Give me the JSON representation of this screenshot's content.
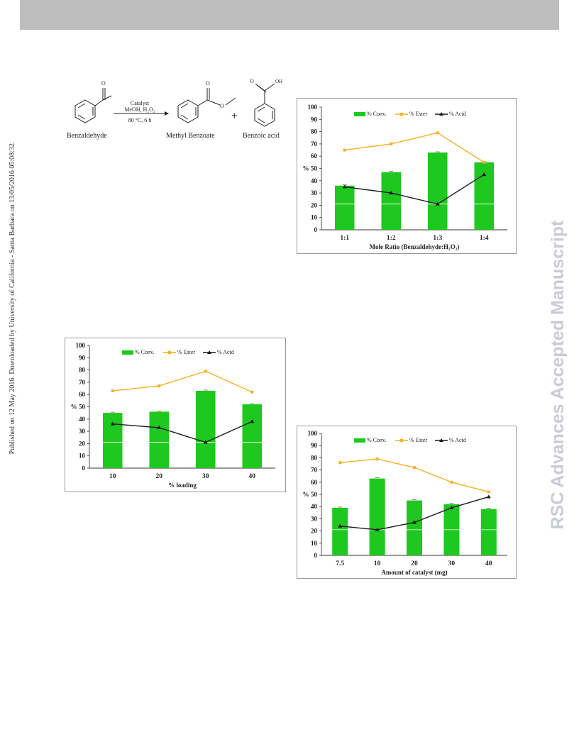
{
  "header_side": {
    "left_text": "Published on 12 May 2016. Downloaded by University of California - Santa Barbara on 13/05/2016 05:08:32.",
    "right_text": "RSC Advances Accepted Manuscript"
  },
  "scheme": {
    "reactant": "Benzaldehyde",
    "conditions_line1": "Catalyst",
    "conditions_line2": "MeOH, H₂O₂",
    "conditions_line3": "80 °C, 6 h",
    "product1": "Methyl Benzoate",
    "plus": "+",
    "product2": "Benzoic acid",
    "atom_O1": "O",
    "atom_O2": "O",
    "atom_O3": "O",
    "atom_OH": "OH"
  },
  "colors": {
    "bar": "#1ec81e",
    "ester": "#f6b020",
    "acid": "#1a1a1a"
  },
  "chart_data": [
    {
      "id": "c1",
      "type": "bar",
      "categories": [
        "1:1",
        "1:2",
        "1:3",
        "1:4"
      ],
      "xlabel": "Mole Ratio (Benzaldehyde:H₂O₂)",
      "ylabel": "%",
      "ylim": [
        0,
        100
      ],
      "yticks": [
        0,
        10,
        20,
        30,
        40,
        50,
        60,
        70,
        80,
        90,
        100
      ],
      "legend": [
        "% Conv.",
        "% Ester",
        "% Acid"
      ],
      "series": [
        {
          "name": "% Conv.",
          "kind": "bar",
          "values": [
            36,
            47,
            63,
            55
          ]
        },
        {
          "name": "% Ester",
          "kind": "line",
          "values": [
            65,
            70,
            79,
            55
          ]
        },
        {
          "name": "% Acid",
          "kind": "line",
          "values": [
            35,
            30,
            21,
            45
          ]
        }
      ]
    },
    {
      "id": "c2",
      "type": "bar",
      "categories": [
        "10",
        "20",
        "30",
        "40"
      ],
      "xlabel": "% loading",
      "ylabel": "%",
      "ylim": [
        0,
        100
      ],
      "yticks": [
        0,
        10,
        20,
        30,
        40,
        50,
        60,
        70,
        80,
        90,
        100
      ],
      "legend": [
        "% Conv.",
        "% Ester",
        "% Acid"
      ],
      "series": [
        {
          "name": "% Conv.",
          "kind": "bar",
          "values": [
            45,
            46,
            63,
            52
          ]
        },
        {
          "name": "% Ester",
          "kind": "line",
          "values": [
            63,
            67,
            79,
            62
          ]
        },
        {
          "name": "% Acid",
          "kind": "line",
          "values": [
            36,
            33,
            21,
            38
          ]
        }
      ]
    },
    {
      "id": "c3",
      "type": "bar",
      "categories": [
        "7.5",
        "10",
        "20",
        "30",
        "40"
      ],
      "xlabel": "Amount of catalyst (mg)",
      "ylabel": "%",
      "ylim": [
        0,
        100
      ],
      "yticks": [
        0,
        10,
        20,
        30,
        40,
        50,
        60,
        70,
        80,
        90,
        100
      ],
      "legend": [
        "% Conv.",
        "% Ester",
        "% Acid"
      ],
      "series": [
        {
          "name": "% Conv.",
          "kind": "bar",
          "values": [
            39,
            63,
            45,
            42,
            38
          ]
        },
        {
          "name": "% Ester",
          "kind": "line",
          "values": [
            76,
            79,
            72,
            60,
            52
          ]
        },
        {
          "name": "% Acid",
          "kind": "line",
          "values": [
            24,
            21,
            27,
            39,
            48
          ]
        }
      ]
    }
  ]
}
